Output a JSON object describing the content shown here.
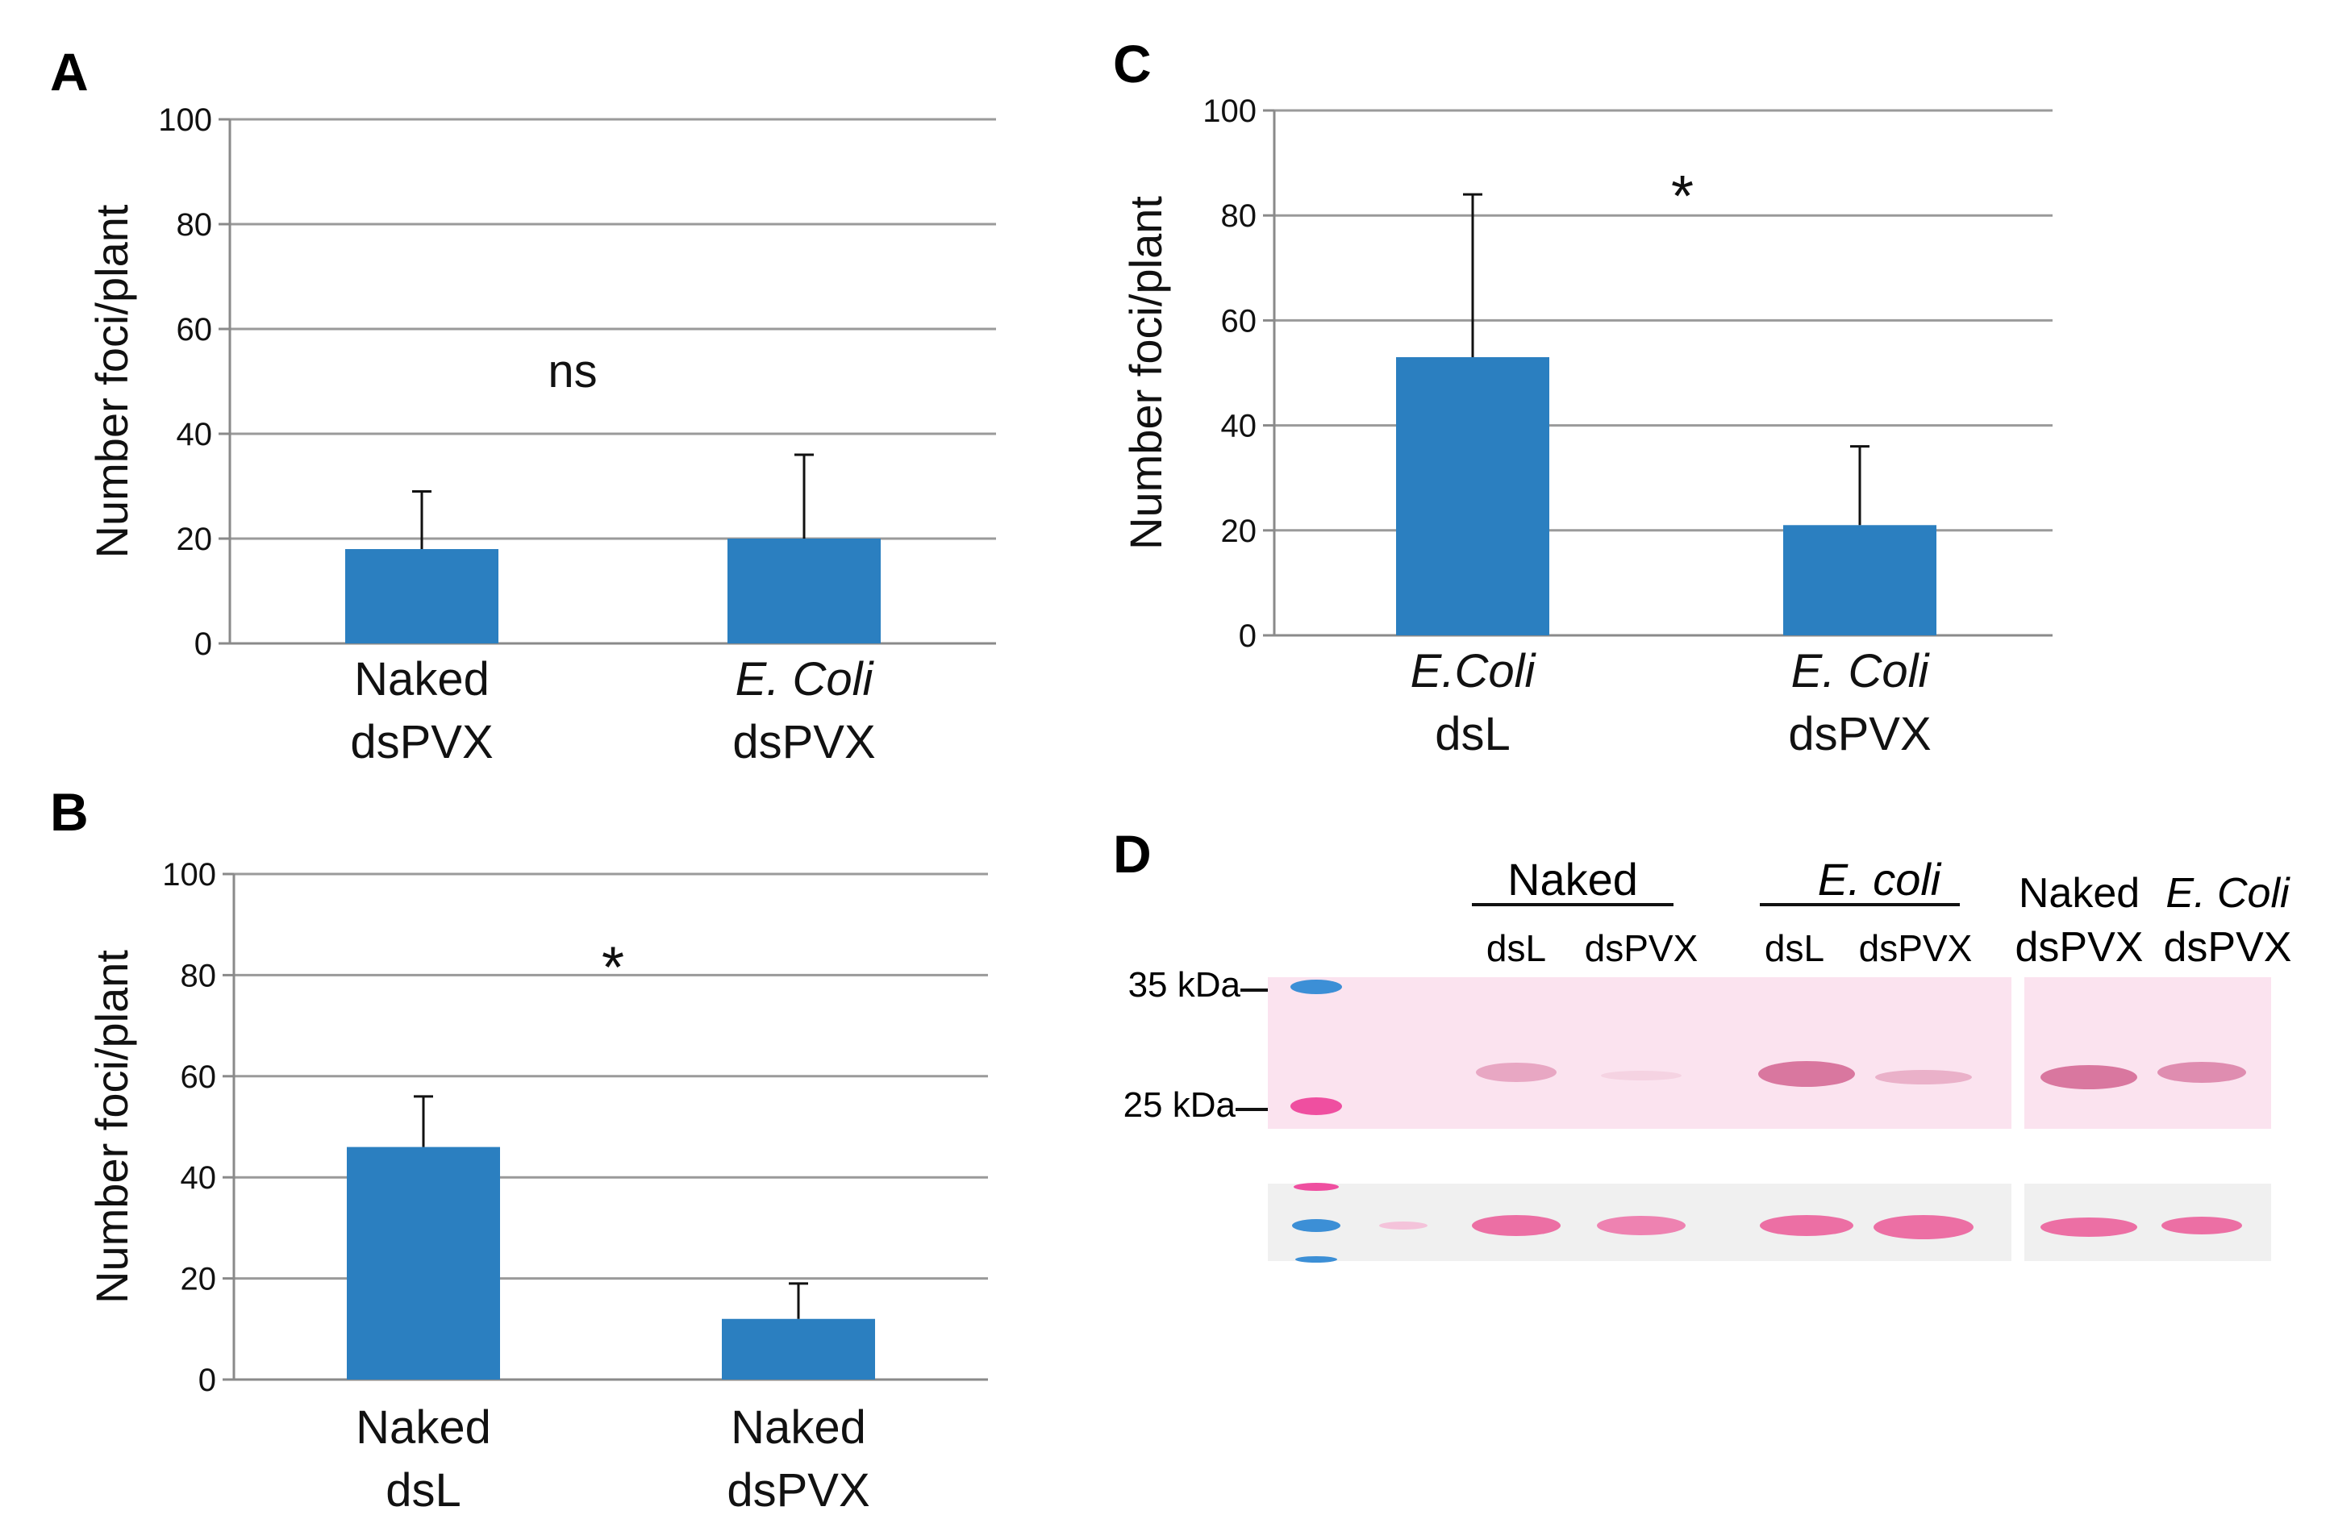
{
  "chart_data": [
    {
      "panel": "A",
      "type": "bar",
      "ylabel": "Number foci/plant",
      "ylim": [
        0,
        100
      ],
      "yticks": [
        0,
        20,
        40,
        60,
        80,
        100
      ],
      "categories": [
        {
          "line1": "Naked",
          "line2": "dsPVX",
          "italic1": false
        },
        {
          "line1": "E. Coli",
          "line2": "dsPVX",
          "italic1": true
        }
      ],
      "values": [
        18,
        20
      ],
      "error_upper": [
        29,
        36
      ],
      "annotation": "ns",
      "grid": true
    },
    {
      "panel": "B",
      "type": "bar",
      "ylabel": "Number foci/plant",
      "ylim": [
        0,
        100
      ],
      "yticks": [
        0,
        20,
        40,
        60,
        80,
        100
      ],
      "categories": [
        {
          "line1": "Naked",
          "line2": "dsL",
          "italic1": false
        },
        {
          "line1": "Naked",
          "line2": "dsPVX",
          "italic1": false
        }
      ],
      "values": [
        46,
        12
      ],
      "error_upper": [
        56,
        19
      ],
      "annotation": "*",
      "grid": true
    },
    {
      "panel": "C",
      "type": "bar",
      "ylabel": "Number foci/plant",
      "ylim": [
        0,
        100
      ],
      "yticks": [
        0,
        20,
        40,
        60,
        80,
        100
      ],
      "categories": [
        {
          "line1": "E.Coli",
          "line2": "dsL",
          "italic1": true
        },
        {
          "line1": "E. Coli",
          "line2": "dsPVX",
          "italic1": true
        }
      ],
      "values": [
        53,
        21
      ],
      "error_upper": [
        84,
        36
      ],
      "annotation": "*",
      "grid": true
    }
  ],
  "western_blot": {
    "panel": "D",
    "group_naked": "Naked",
    "group_ecoli": "E. coli",
    "lanes": [
      "dsL",
      "dsPVX",
      "dsL",
      "dsPVX"
    ],
    "extra_line1_a": "Naked",
    "extra_line1_b": "E. Coli",
    "extra_lanes": [
      "dsPVX",
      "dsPVX"
    ],
    "markers": [
      "35 kDa",
      "25 kDa"
    ],
    "colors": {
      "membrane": "#fbe3ef",
      "band": "#d9779f",
      "loading": "#f0f0f0",
      "loading_band": "#ec6fa4",
      "marker_blue": "#3c8fd6",
      "marker_pink": "#ef4fa0"
    }
  },
  "colors": {
    "bar": "#2b7fc0",
    "grid": "#9a9a9a",
    "axis": "#8a8a8a"
  }
}
